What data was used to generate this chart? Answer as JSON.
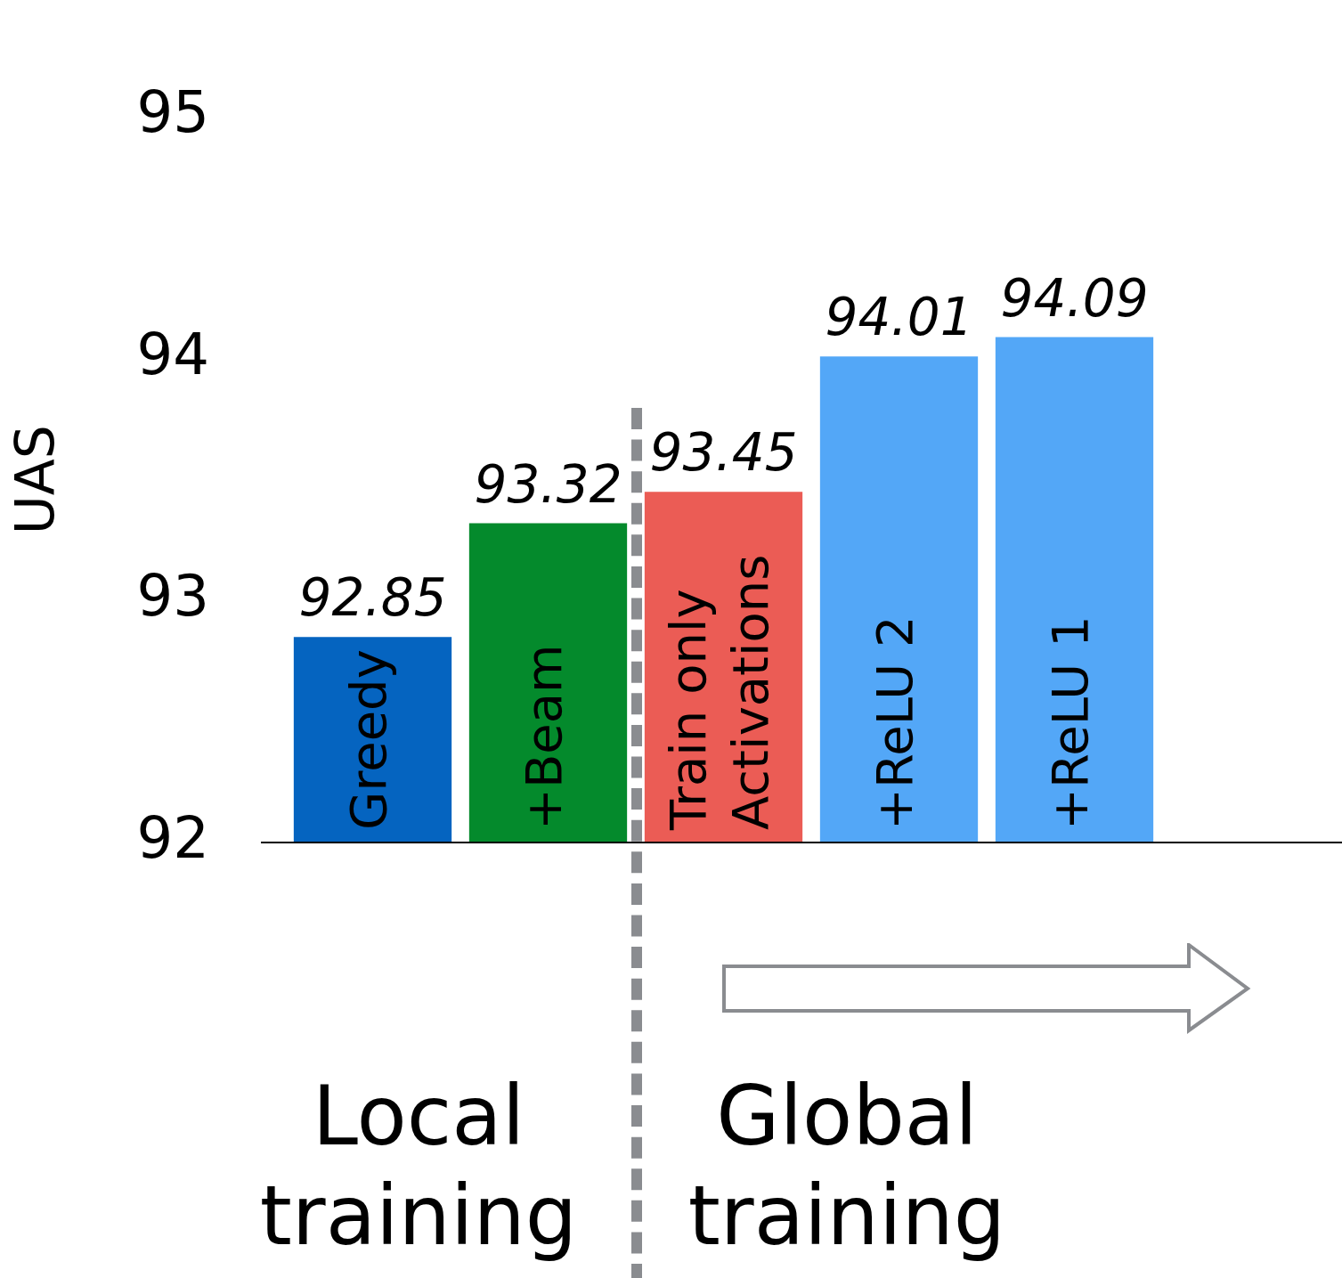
{
  "chart_data": {
    "type": "bar",
    "ylabel": "UAS",
    "categories": [
      "Greedy",
      "+Beam",
      "Train only\nActivations",
      "+ReLU 2",
      "+ReLU 1"
    ],
    "values": [
      92.85,
      93.32,
      93.45,
      94.01,
      94.09
    ],
    "colors": [
      "#0564c0",
      "#048a2c",
      "#eb5c55",
      "#53a7f7",
      "#53a7f7"
    ],
    "ylim": [
      92,
      95
    ],
    "yticks": [
      92,
      93,
      94,
      95
    ],
    "grid": false,
    "legend": false,
    "data_labels": true,
    "annotations": [
      "Local\ntraining",
      "Global\ntraining"
    ]
  }
}
